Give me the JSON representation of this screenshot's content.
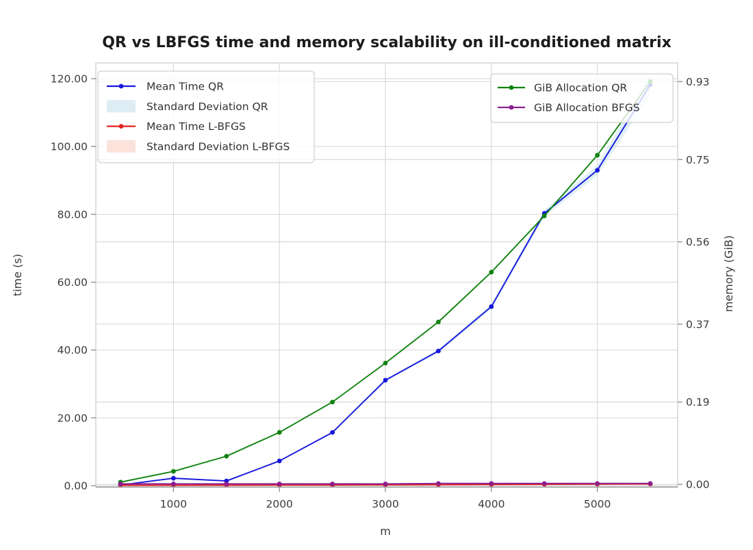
{
  "chart_data": {
    "type": "line",
    "title": "QR vs LBFGS time and memory scalability on ill-conditioned matrix",
    "x_axis": {
      "label": "m",
      "tick_values": [
        1000,
        2000,
        3000,
        4000,
        5000
      ],
      "tick_labels": [
        "1000",
        "2000",
        "3000",
        "4000",
        "5000"
      ],
      "range": [
        270,
        5760
      ]
    },
    "y_left": {
      "label": "time (s)",
      "tick_values": [
        0,
        20,
        40,
        60,
        80,
        100,
        120
      ],
      "tick_labels": [
        "0.00",
        "20.00",
        "40.00",
        "60.00",
        "80.00",
        "100.00",
        "120.00"
      ],
      "range": [
        -0.5,
        125
      ]
    },
    "y_right": {
      "label": "memory (GiB)",
      "tick_values": [
        0,
        0.19,
        0.37,
        0.56,
        0.75,
        0.93
      ],
      "tick_labels": [
        "0.00",
        "0.19",
        "0.37",
        "0.56",
        "0.75",
        "0.93"
      ],
      "range": [
        -0.01,
        0.97
      ]
    },
    "x": [
      500,
      1000,
      1500,
      2000,
      2500,
      3000,
      3500,
      4000,
      4500,
      5000,
      5500
    ],
    "series": [
      {
        "name": "Mean Time QR",
        "axis": "left",
        "color": "#1717dd",
        "values": [
          0.2,
          2.2,
          1.4,
          7.3,
          15.7,
          31.1,
          39.7,
          52.8,
          80.3,
          93.0,
          118.2
        ],
        "std": [
          0.05,
          0.08,
          0.1,
          0.15,
          0.25,
          0.4,
          0.5,
          0.7,
          1.0,
          1.5,
          3.0
        ],
        "band_label": "Standard Deviation QR",
        "band_color": "rgba(173,216,230,0.4)"
      },
      {
        "name": "Mean Time L-BFGS",
        "axis": "left",
        "color": "#e32222",
        "values": [
          0.1,
          0.12,
          0.15,
          0.18,
          0.2,
          0.25,
          0.3,
          0.35,
          0.4,
          0.45,
          0.5
        ],
        "std": [
          0.02,
          0.02,
          0.02,
          0.02,
          0.02,
          0.02,
          0.02,
          0.02,
          0.02,
          0.02,
          0.02
        ],
        "band_label": "Standard Deviation L-BFGS",
        "band_color": "rgba(250,150,130,0.3)"
      },
      {
        "name": "GiB Allocation QR",
        "axis": "right",
        "color": "#0f820f",
        "values": [
          0.005,
          0.03,
          0.065,
          0.12,
          0.19,
          0.28,
          0.375,
          0.49,
          0.62,
          0.76,
          0.93
        ]
      },
      {
        "name": "GiB Allocation BFGS",
        "axis": "right",
        "color": "#8b1f8f",
        "values": [
          0.001,
          0.001,
          0.001,
          0.001,
          0.001,
          0.001,
          0.002,
          0.002,
          0.002,
          0.002,
          0.002
        ]
      }
    ],
    "legend_left": {
      "items": [
        {
          "label": "Mean Time QR",
          "type": "line",
          "color": "#1717dd"
        },
        {
          "label": "Standard Deviation QR",
          "type": "patch",
          "color": "#deecf4"
        },
        {
          "label": "Mean Time L-BFGS",
          "type": "line",
          "color": "#e32222"
        },
        {
          "label": "Standard Deviation L-BFGS",
          "type": "patch",
          "color": "#fbe2da"
        }
      ]
    },
    "legend_right": {
      "items": [
        {
          "label": "GiB Allocation QR",
          "type": "line",
          "color": "#0f820f"
        },
        {
          "label": "GiB Allocation BFGS",
          "type": "line",
          "color": "#8b1f8f"
        }
      ]
    },
    "style": {
      "grid_color": "#d9d9d9",
      "spine_color": "#cccccc",
      "bottom_spine_color": "#9a9a9a",
      "tick_color": "#8c8c8c",
      "legend_bg": "rgba(255,255,255,0.8)",
      "legend_border": "#cfcfcf"
    }
  }
}
